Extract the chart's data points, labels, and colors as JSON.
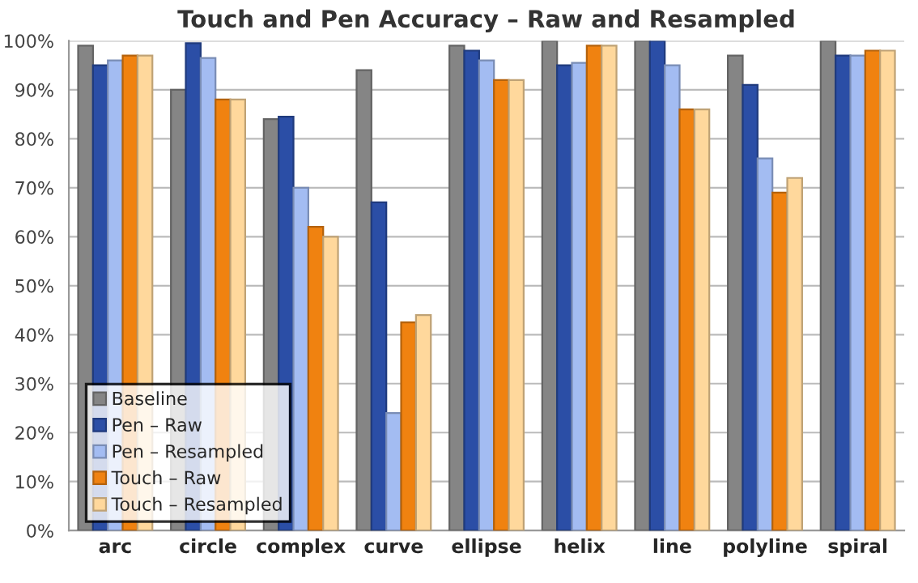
{
  "chart_data": {
    "type": "bar",
    "title": "Touch and Pen Accuracy – Raw and Resampled",
    "categories": [
      "arc",
      "circle",
      "complex",
      "curve",
      "ellipse",
      "helix",
      "line",
      "polyline",
      "spiral"
    ],
    "series": [
      {
        "name": "Baseline",
        "color": "#858585",
        "values": [
          99,
          90,
          84,
          94,
          99,
          100,
          100,
          97,
          100
        ]
      },
      {
        "name": "Pen – Raw",
        "color": "#2b4ea6",
        "values": [
          95,
          99.5,
          84.5,
          67,
          98,
          95,
          100,
          91,
          97
        ]
      },
      {
        "name": "Pen – Resampled",
        "color": "#a3bcf2",
        "values": [
          96,
          96.5,
          70,
          24,
          96,
          95.5,
          95,
          76,
          97
        ]
      },
      {
        "name": "Touch – Raw",
        "color": "#f08210",
        "values": [
          97,
          88,
          62,
          42.5,
          92,
          99,
          86,
          69,
          98
        ]
      },
      {
        "name": "Touch – Resampled",
        "color": "#ffd89c",
        "values": [
          97,
          88,
          60,
          44,
          92,
          99,
          86,
          72,
          98
        ]
      }
    ],
    "ylim": [
      0,
      100
    ],
    "yticks": [
      {
        "value": 0,
        "label": "0%"
      },
      {
        "value": 10,
        "label": "10%"
      },
      {
        "value": 20,
        "label": "20%"
      },
      {
        "value": 30,
        "label": "30%"
      },
      {
        "value": 40,
        "label": "40%"
      },
      {
        "value": 50,
        "label": "50%"
      },
      {
        "value": 60,
        "label": "60%"
      },
      {
        "value": 70,
        "label": "70%"
      },
      {
        "value": 80,
        "label": "80%"
      },
      {
        "value": 90,
        "label": "90%"
      },
      {
        "value": 100,
        "label": "100%"
      }
    ],
    "grid": "y",
    "legend": "bottom left"
  }
}
